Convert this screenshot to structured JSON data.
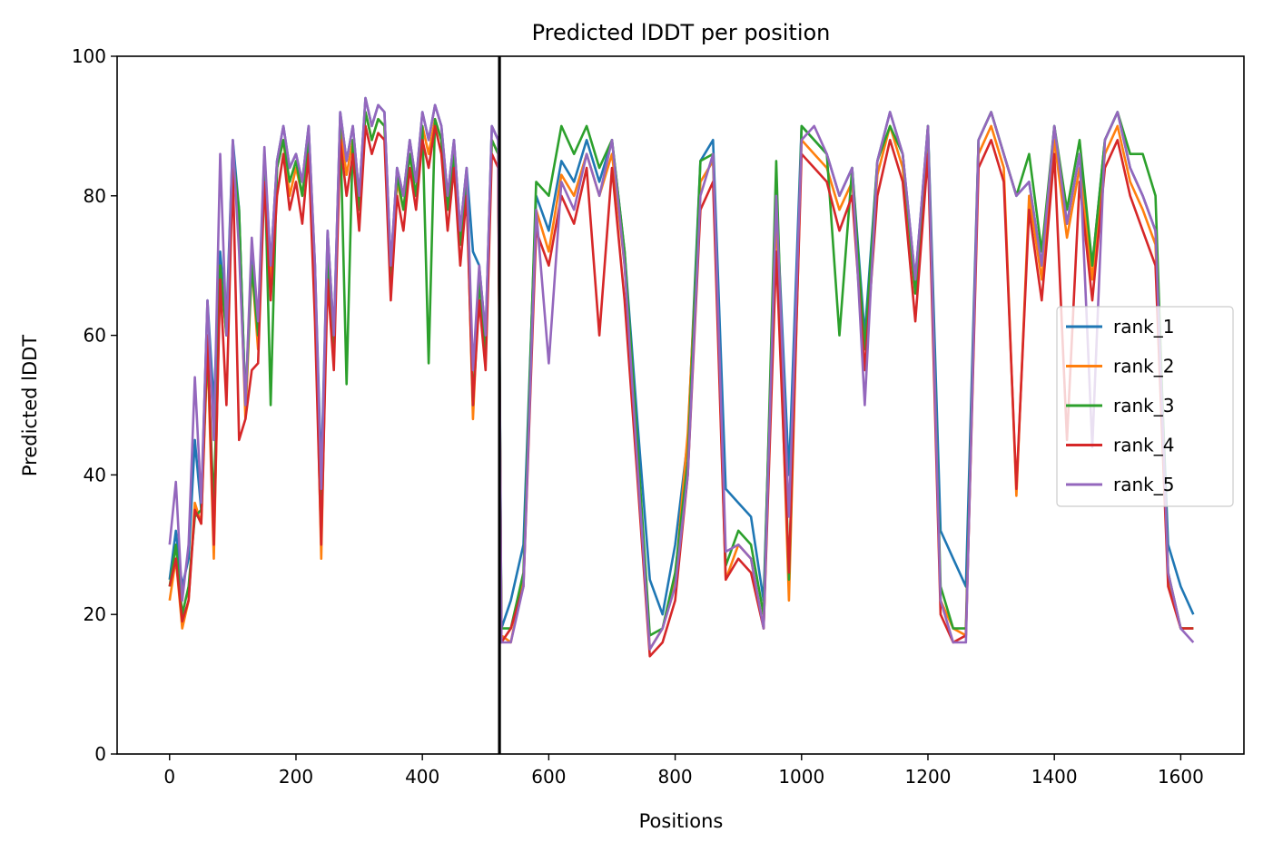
{
  "chart_data": {
    "type": "line",
    "title": "Predicted lDDT per position",
    "xlabel": "Positions",
    "ylabel": "Predicted lDDT",
    "xlim": [
      -83,
      1700
    ],
    "ylim": [
      0,
      100
    ],
    "xticks": [
      0,
      200,
      400,
      600,
      800,
      1000,
      1200,
      1400,
      1600
    ],
    "xtick_labels": [
      "0",
      "200",
      "400",
      "600",
      "800",
      "1000",
      "1200",
      "1400",
      "1600"
    ],
    "yticks": [
      0,
      20,
      40,
      60,
      80,
      100
    ],
    "ytick_labels": [
      "0",
      "20",
      "40",
      "60",
      "80",
      "100"
    ],
    "vline_x": 522,
    "legend_position": "center-right",
    "grid": false,
    "x": [
      0,
      10,
      20,
      30,
      40,
      50,
      60,
      70,
      80,
      90,
      100,
      110,
      120,
      130,
      140,
      150,
      160,
      170,
      180,
      190,
      200,
      210,
      220,
      230,
      240,
      250,
      260,
      270,
      280,
      290,
      300,
      310,
      320,
      330,
      340,
      350,
      360,
      370,
      380,
      390,
      400,
      410,
      420,
      430,
      440,
      450,
      460,
      470,
      480,
      490,
      500,
      510,
      520,
      525,
      540,
      560,
      580,
      600,
      620,
      640,
      660,
      680,
      700,
      720,
      740,
      760,
      780,
      800,
      820,
      840,
      860,
      880,
      900,
      920,
      940,
      960,
      980,
      1000,
      1020,
      1040,
      1060,
      1080,
      1100,
      1120,
      1140,
      1160,
      1180,
      1200,
      1220,
      1240,
      1260,
      1280,
      1300,
      1320,
      1340,
      1360,
      1380,
      1400,
      1420,
      1440,
      1460,
      1480,
      1500,
      1520,
      1540,
      1560,
      1580,
      1600,
      1620
    ],
    "series": [
      {
        "name": "rank_1",
        "color": "#1f77b4",
        "values": [
          25,
          32,
          24,
          28,
          45,
          35,
          65,
          50,
          72,
          62,
          88,
          78,
          50,
          72,
          60,
          86,
          70,
          85,
          90,
          84,
          86,
          82,
          90,
          70,
          40,
          75,
          60,
          92,
          85,
          90,
          80,
          94,
          90,
          93,
          92,
          70,
          84,
          80,
          88,
          82,
          92,
          88,
          93,
          90,
          80,
          88,
          75,
          84,
          72,
          70,
          60,
          90,
          88,
          18,
          22,
          30,
          80,
          75,
          85,
          82,
          88,
          82,
          88,
          72,
          48,
          25,
          20,
          30,
          45,
          85,
          88,
          38,
          36,
          34,
          22,
          80,
          40,
          90,
          88,
          86,
          80,
          84,
          60,
          85,
          92,
          86,
          68,
          90,
          32,
          28,
          24,
          88,
          92,
          86,
          80,
          82,
          70,
          90,
          76,
          86,
          70,
          88,
          92,
          84,
          80,
          75,
          30,
          24,
          20
        ]
      },
      {
        "name": "rank_2",
        "color": "#ff7f0e",
        "values": [
          22,
          28,
          18,
          22,
          36,
          33,
          58,
          28,
          70,
          60,
          86,
          75,
          48,
          70,
          58,
          85,
          68,
          84,
          88,
          80,
          84,
          80,
          88,
          67,
          28,
          72,
          58,
          90,
          83,
          88,
          78,
          92,
          88,
          91,
          90,
          68,
          82,
          78,
          86,
          80,
          90,
          86,
          91,
          88,
          78,
          86,
          73,
          82,
          48,
          68,
          58,
          88,
          86,
          17,
          16,
          25,
          78,
          72,
          83,
          80,
          86,
          80,
          86,
          70,
          44,
          15,
          18,
          25,
          46,
          82,
          85,
          25,
          30,
          28,
          18,
          78,
          22,
          88,
          86,
          84,
          78,
          82,
          58,
          83,
          90,
          84,
          66,
          88,
          22,
          18,
          17,
          86,
          90,
          84,
          37,
          80,
          68,
          88,
          74,
          84,
          68,
          86,
          90,
          82,
          78,
          73,
          25,
          18,
          18
        ]
      },
      {
        "name": "rank_3",
        "color": "#2ca02c",
        "values": [
          24,
          30,
          20,
          24,
          34,
          35,
          58,
          35,
          70,
          60,
          86,
          78,
          50,
          70,
          60,
          86,
          50,
          84,
          88,
          82,
          85,
          80,
          88,
          68,
          35,
          72,
          58,
          90,
          53,
          88,
          78,
          92,
          88,
          91,
          90,
          68,
          83,
          78,
          86,
          80,
          90,
          56,
          91,
          88,
          78,
          86,
          73,
          82,
          50,
          68,
          58,
          88,
          86,
          18,
          18,
          26,
          82,
          80,
          90,
          86,
          90,
          84,
          88,
          72,
          45,
          17,
          18,
          26,
          42,
          85,
          86,
          27,
          32,
          30,
          20,
          85,
          25,
          90,
          88,
          86,
          60,
          84,
          58,
          85,
          90,
          86,
          66,
          90,
          24,
          18,
          18,
          88,
          92,
          86,
          80,
          86,
          72,
          90,
          78,
          88,
          70,
          88,
          92,
          86,
          86,
          80,
          26,
          18,
          18
        ]
      },
      {
        "name": "rank_4",
        "color": "#d62728",
        "values": [
          24,
          28,
          19,
          22,
          35,
          33,
          60,
          30,
          68,
          50,
          84,
          45,
          48,
          55,
          56,
          82,
          65,
          80,
          86,
          78,
          82,
          76,
          86,
          62,
          30,
          68,
          55,
          88,
          80,
          86,
          75,
          90,
          86,
          89,
          88,
          65,
          80,
          75,
          84,
          78,
          88,
          84,
          90,
          86,
          75,
          84,
          70,
          80,
          50,
          65,
          55,
          86,
          84,
          16,
          18,
          24,
          75,
          70,
          80,
          76,
          84,
          60,
          84,
          65,
          40,
          14,
          16,
          22,
          40,
          78,
          82,
          25,
          28,
          26,
          18,
          72,
          26,
          86,
          84,
          82,
          75,
          80,
          55,
          80,
          88,
          82,
          62,
          86,
          20,
          16,
          17,
          84,
          88,
          82,
          38,
          78,
          65,
          86,
          45,
          82,
          65,
          84,
          88,
          80,
          75,
          70,
          24,
          18,
          18
        ]
      },
      {
        "name": "rank_5",
        "color": "#9467bd",
        "values": [
          30,
          39,
          22,
          30,
          54,
          36,
          65,
          45,
          86,
          60,
          88,
          72,
          50,
          74,
          62,
          87,
          70,
          85,
          90,
          84,
          86,
          82,
          90,
          70,
          38,
          75,
          60,
          92,
          85,
          90,
          80,
          94,
          90,
          93,
          92,
          70,
          84,
          80,
          88,
          82,
          92,
          88,
          93,
          90,
          80,
          88,
          75,
          84,
          55,
          70,
          60,
          90,
          88,
          16,
          16,
          24,
          78,
          56,
          82,
          78,
          86,
          80,
          88,
          70,
          42,
          15,
          18,
          24,
          40,
          80,
          86,
          29,
          30,
          28,
          18,
          80,
          34,
          88,
          90,
          86,
          80,
          84,
          50,
          85,
          92,
          86,
          68,
          90,
          22,
          16,
          16,
          88,
          92,
          86,
          80,
          82,
          70,
          90,
          76,
          86,
          44,
          88,
          92,
          84,
          80,
          75,
          26,
          18,
          16
        ]
      }
    ]
  }
}
